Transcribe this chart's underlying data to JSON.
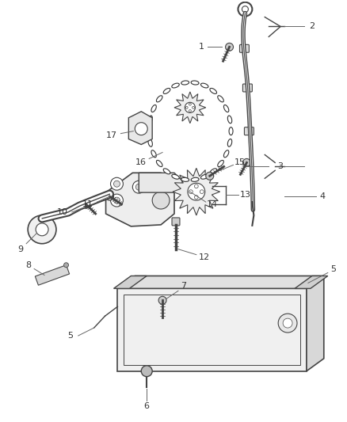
{
  "bg_color": "#ffffff",
  "line_color": "#444444",
  "fig_width": 4.38,
  "fig_height": 5.33,
  "dpi": 100
}
